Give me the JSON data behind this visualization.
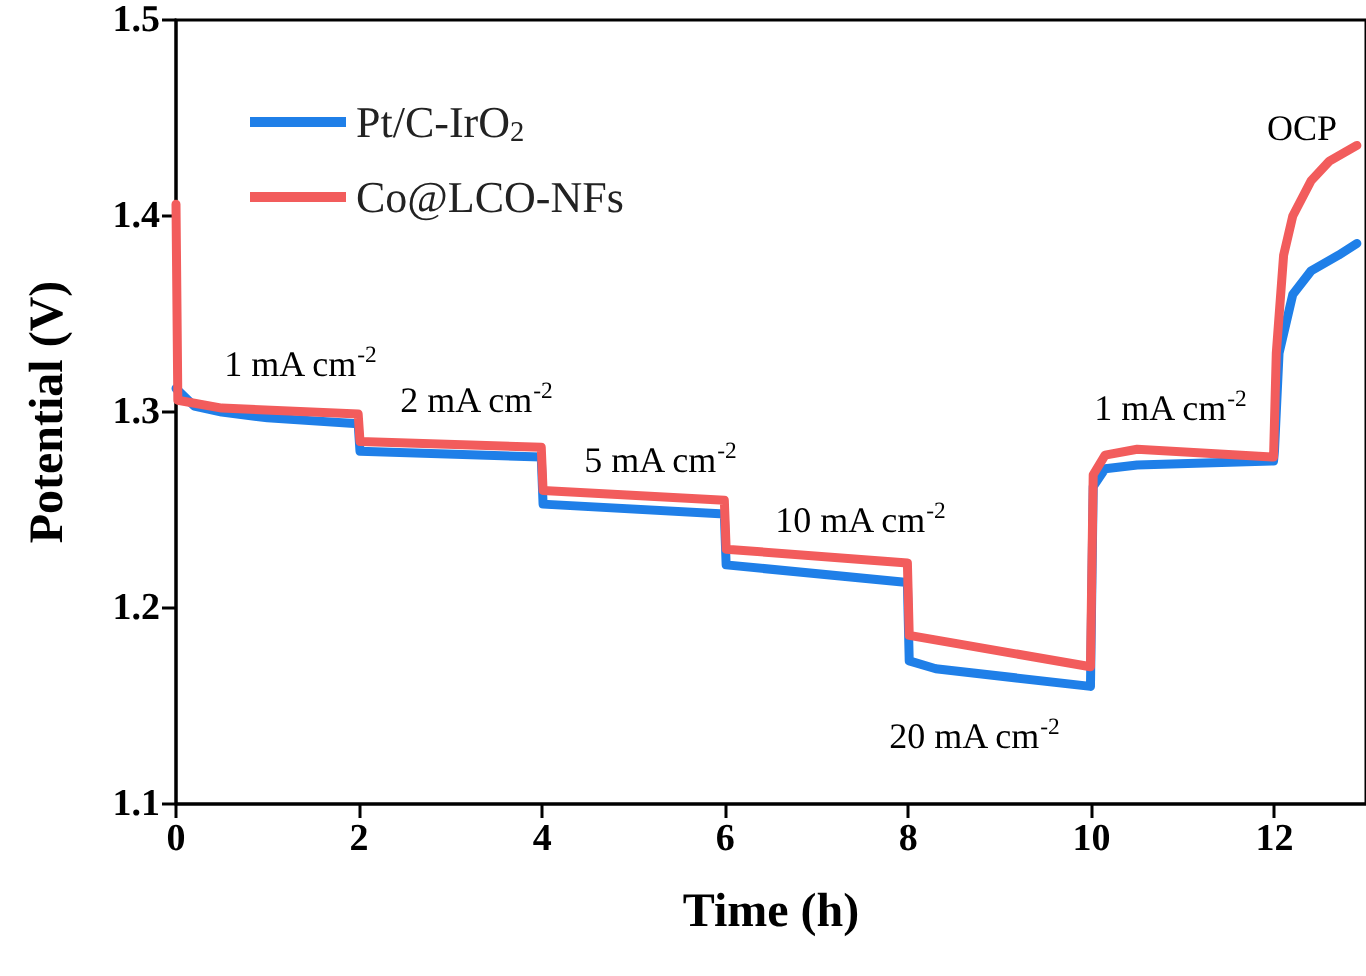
{
  "chart_data": {
    "type": "line",
    "xlabel": "Time (h)",
    "ylabel": "Potential (V)",
    "xlim": [
      0,
      13
    ],
    "xticks": [
      0,
      2,
      4,
      6,
      8,
      10,
      12
    ],
    "ylim": [
      1.1,
      1.5
    ],
    "yticks": [
      1.1,
      1.2,
      1.3,
      1.4,
      1.5
    ],
    "grid": false,
    "legend": "top left",
    "marker": "none",
    "line_style": "solid",
    "series": [
      {
        "name": "Pt/C-IrO$_{2}$",
        "color": "#1f7fe8",
        "x": [
          0,
          0.2,
          0.5,
          1,
          1.99,
          2.01,
          3.99,
          4.01,
          5.99,
          6.01,
          7.99,
          8.01,
          8.3,
          9.99,
          10.02,
          10.15,
          10.5,
          11.99,
          12,
          12.05,
          12.2,
          12.4,
          12.7,
          12.9
        ],
        "values": [
          1.312,
          1.303,
          1.3,
          1.297,
          1.294,
          1.28,
          1.277,
          1.253,
          1.248,
          1.222,
          1.213,
          1.173,
          1.169,
          1.16,
          1.262,
          1.271,
          1.273,
          1.275,
          1.28,
          1.33,
          1.36,
          1.372,
          1.38,
          1.386
        ]
      },
      {
        "name": "Co@LCO-NFs",
        "color": "#f25c5c",
        "x": [
          0,
          0.02,
          0.5,
          1.99,
          2.01,
          3.99,
          4.01,
          5.99,
          6.01,
          7.99,
          8.01,
          9.99,
          10.02,
          10.15,
          10.5,
          11.99,
          12.02,
          12.1,
          12.2,
          12.4,
          12.6,
          12.9
        ],
        "values": [
          1.406,
          1.306,
          1.302,
          1.299,
          1.285,
          1.282,
          1.26,
          1.255,
          1.23,
          1.223,
          1.186,
          1.17,
          1.268,
          1.278,
          1.281,
          1.277,
          1.33,
          1.38,
          1.4,
          1.418,
          1.428,
          1.436
        ]
      }
    ],
    "annotations": [
      "1 mA cm$^{-2}$",
      "2 mA cm$^{-2}$",
      "5 mA cm$^{-2}$",
      "10 mA cm$^{-2}$",
      "20 mA cm$^{-2}$",
      "1 mA cm$^{-2}$",
      "OCP"
    ]
  }
}
